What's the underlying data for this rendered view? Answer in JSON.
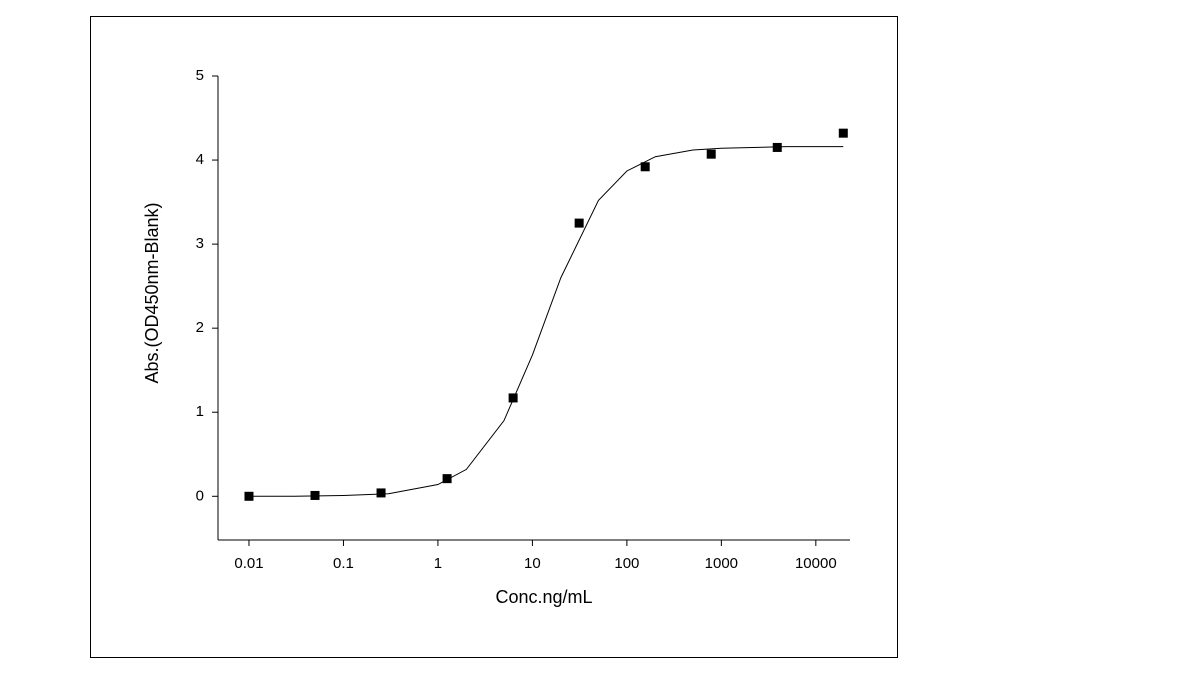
{
  "chart_data": {
    "type": "scatter",
    "x_label": "Conc.ng/mL",
    "y_label": "Abs.(OD450nm-Blank)",
    "xscale": "log",
    "xlim": [
      0.0047,
      23000
    ],
    "xticks": [
      0.01,
      0.1,
      1,
      10,
      100,
      1000,
      10000
    ],
    "ylim": [
      -0.52,
      5
    ],
    "yticks": [
      0,
      1,
      2,
      3,
      4,
      5
    ],
    "series": [
      {
        "type": "scatter",
        "color": "#000000",
        "x": [
          0.01,
          0.05,
          0.25,
          1.25,
          6.25,
          31.25,
          156.25,
          781.25,
          3906.25,
          19531.25
        ],
        "values": [
          0.0,
          0.01,
          0.04,
          0.21,
          1.17,
          3.25,
          3.92,
          4.07,
          4.15,
          4.32
        ]
      },
      {
        "type": "line",
        "color": "#000000",
        "x": [
          0.01,
          0.03,
          0.1,
          0.3,
          1,
          2,
          5,
          10,
          20,
          50,
          100,
          200,
          500,
          1000,
          5000,
          19531.25
        ],
        "values": [
          0.0,
          0.0,
          0.01,
          0.03,
          0.14,
          0.32,
          0.9,
          1.68,
          2.6,
          3.52,
          3.87,
          4.04,
          4.12,
          4.14,
          4.16,
          4.16
        ]
      }
    ]
  }
}
